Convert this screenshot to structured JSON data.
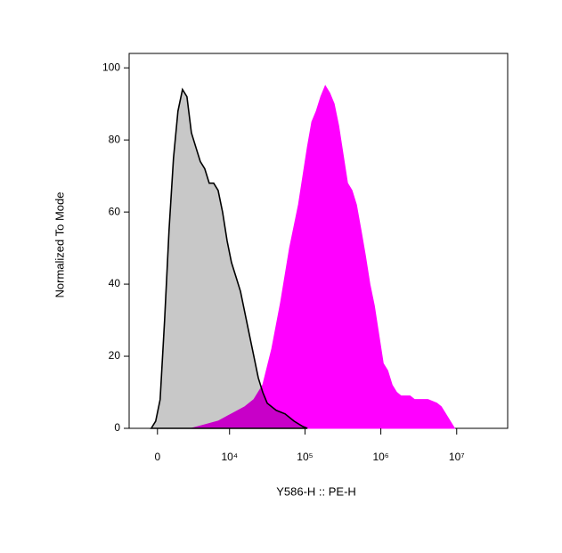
{
  "chart_data": {
    "type": "area",
    "x_label": "Y586-H :: PE-H",
    "y_label": "Normalized To Mode",
    "xscale": "biexponential",
    "xlim": [
      -2200,
      47000000
    ],
    "xticks": [
      0,
      {
        "value": 10000,
        "label": "10⁴"
      },
      {
        "value": 100000,
        "label": "10⁵"
      },
      {
        "value": 1000000,
        "label": "10⁶"
      },
      {
        "value": 10000000,
        "label": "10⁷"
      }
    ],
    "ylim": [
      0,
      104
    ],
    "yticks": [
      0,
      20,
      40,
      60,
      80,
      100
    ],
    "series": [
      {
        "color": "#ff00ff",
        "x": [
          2774,
          4501,
          6973,
          10626,
          16072,
          21111,
          27717,
          36400,
          47700,
          62500,
          82000,
          107500,
          123100,
          141000,
          161500,
          185000,
          211800,
          242400,
          277700,
          317900,
          364200,
          416900,
          477200,
          546600,
          625600,
          716600,
          820200,
          939500,
          1075400,
          1231600,
          1410500,
          1614000,
          1849000,
          2425000,
          2776000,
          3177000,
          4164000,
          5460000,
          6254000,
          7162000,
          8204000,
          9392000
        ],
        "values": [
          0,
          1,
          2,
          4,
          6,
          8,
          12,
          22,
          35,
          50,
          62,
          78,
          85,
          88,
          92,
          95,
          93,
          90,
          84,
          76,
          68,
          66,
          62,
          55,
          48,
          40,
          34,
          26,
          18,
          16,
          12,
          10,
          9,
          9,
          8,
          8,
          8,
          7,
          6,
          4,
          2,
          0
        ]
      },
      {
        "color": "#c8c8c8",
        "x": [
          -433,
          -123,
          184,
          493,
          816,
          1151,
          1508,
          1895,
          2316,
          2774,
          3282,
          3855,
          4501,
          5223,
          6040,
          6973,
          8048,
          9266,
          10626,
          12208,
          13999,
          16072,
          18410,
          21111,
          24198,
          27717,
          31735,
          41655,
          54616,
          71619,
          93933,
          107600
        ],
        "values": [
          0,
          2,
          8,
          30,
          55,
          75,
          88,
          94,
          92,
          82,
          78,
          74,
          72,
          68,
          68,
          66,
          60,
          52,
          46,
          42,
          38,
          32,
          26,
          20,
          14,
          10,
          7,
          5,
          4,
          2,
          0.5,
          0
        ]
      }
    ]
  }
}
